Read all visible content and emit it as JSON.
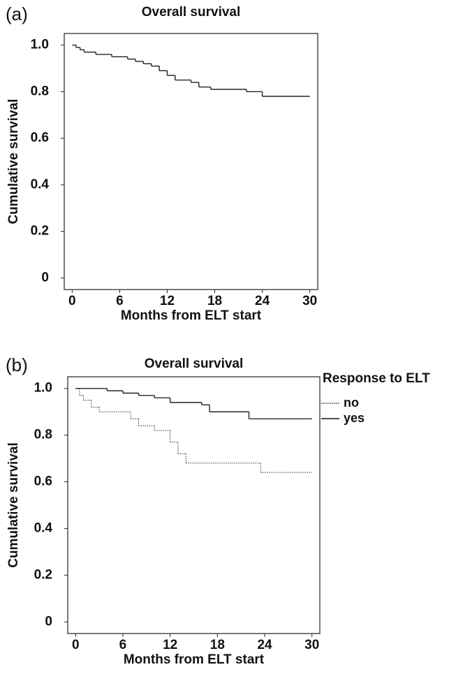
{
  "chart_data": [
    {
      "type": "step",
      "panel_label": "(a)",
      "title": "Overall survival",
      "x_label": "Months from ELT start",
      "y_label": "Cumulative survival",
      "xlim": [
        -1,
        31
      ],
      "ylim": [
        -0.05,
        1.05
      ],
      "xticks": [
        0,
        6,
        12,
        18,
        24,
        30
      ],
      "yticks": [
        0,
        0.2,
        0.4,
        0.6,
        0.8,
        {
          "value": 1,
          "label": "1.0"
        }
      ],
      "series": [
        {
          "color": "#111111",
          "dash": "solid",
          "x": [
            0,
            0.5,
            1,
            1.5,
            2,
            3,
            5,
            7,
            8,
            9,
            10,
            11,
            12,
            13,
            15,
            16,
            17.5,
            22,
            24,
            30
          ],
          "values": [
            1.0,
            0.99,
            0.98,
            0.97,
            0.97,
            0.96,
            0.95,
            0.94,
            0.93,
            0.92,
            0.91,
            0.89,
            0.87,
            0.85,
            0.84,
            0.82,
            0.81,
            0.8,
            0.78,
            0.78
          ]
        }
      ]
    },
    {
      "type": "step",
      "panel_label": "(b)",
      "title": "Overall survival",
      "x_label": "Months from ELT start",
      "y_label": "Cumulative survival",
      "legend_title": "Response to ELT",
      "xlim": [
        -1,
        31
      ],
      "ylim": [
        -0.05,
        1.05
      ],
      "xticks": [
        0,
        6,
        12,
        18,
        24,
        30
      ],
      "yticks": [
        0,
        0.2,
        0.4,
        0.6,
        0.8,
        {
          "value": 1,
          "label": "1.0"
        }
      ],
      "series": [
        {
          "name": "no",
          "color": "#333333",
          "dash": "dotted",
          "x": [
            0,
            0.5,
            1,
            2,
            3,
            7,
            8,
            10,
            12,
            13,
            14,
            23.5,
            30
          ],
          "values": [
            1.0,
            0.97,
            0.95,
            0.92,
            0.9,
            0.87,
            0.84,
            0.82,
            0.77,
            0.72,
            0.68,
            0.64,
            0.64
          ]
        },
        {
          "name": "yes",
          "color": "#111111",
          "dash": "solid",
          "x": [
            0,
            4,
            6,
            8,
            10,
            12,
            16,
            17,
            22,
            30
          ],
          "values": [
            1.0,
            0.99,
            0.98,
            0.97,
            0.96,
            0.94,
            0.93,
            0.9,
            0.87,
            0.87
          ]
        }
      ]
    }
  ]
}
